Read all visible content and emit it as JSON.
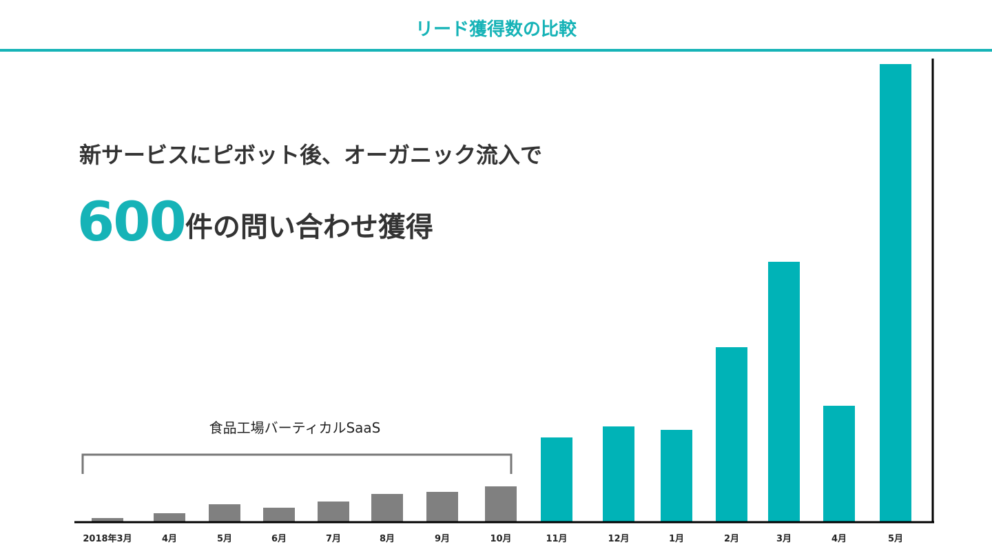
{
  "chart_data": {
    "type": "bar",
    "title": "リード獲得数の比較",
    "headline": "新サービスにピボット後、オーガニック流入で",
    "highlight_number": "600",
    "highlight_text": "件の問い合わせ獲得",
    "categories": [
      "2018年3月",
      "4月",
      "5月",
      "6月",
      "7月",
      "8月",
      "9月",
      "10月",
      "11月",
      "12月",
      "1月",
      "2月",
      "3月",
      "4月",
      "5月"
    ],
    "values": [
      5,
      12,
      25,
      20,
      29,
      40,
      43,
      51,
      122,
      138,
      133,
      253,
      377,
      168,
      664
    ],
    "value_units": "relative (no y-axis scale shown)",
    "ylim": [
      0,
      680
    ],
    "grid": false,
    "series_groups": [
      {
        "name": "食品工場バーティカルSaaS",
        "from_index": 0,
        "to_index": 7,
        "color": "#808080"
      },
      {
        "name": "new-service",
        "from_index": 8,
        "to_index": 14,
        "color": "#00b3b7"
      }
    ],
    "annotation": "食品工場バーティカルSaaS",
    "xlabel": "",
    "ylabel": ""
  }
}
